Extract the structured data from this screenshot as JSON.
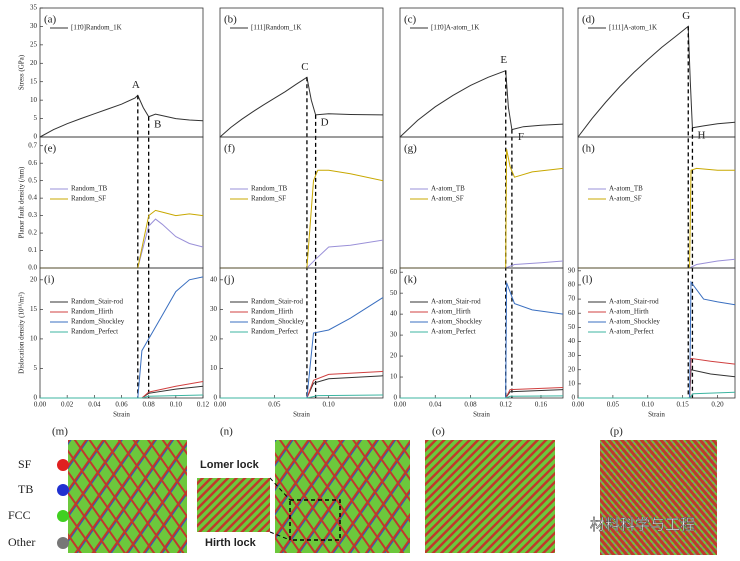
{
  "chart_data": [
    {
      "type": "line",
      "panel": "(a)",
      "ylabel": "Stress (GPa)",
      "xlim": [
        0,
        0.12
      ],
      "ylim": [
        0,
        35
      ],
      "yticks": [
        0,
        5,
        10,
        15,
        20,
        25,
        30,
        35
      ],
      "legend": "upper left",
      "markers": [
        0.072,
        0.08
      ],
      "marker_labels": [
        "A",
        "B"
      ],
      "series": [
        {
          "name": "[11̄0]Random_1K",
          "color": "#333333",
          "x": [
            0,
            0.01,
            0.02,
            0.03,
            0.04,
            0.05,
            0.06,
            0.07,
            0.072,
            0.076,
            0.08,
            0.085,
            0.09,
            0.1,
            0.11,
            0.12
          ],
          "values": [
            0,
            2,
            3.6,
            5,
            6.3,
            7.6,
            8.9,
            10.6,
            11.3,
            8,
            5.5,
            6.2,
            5.8,
            5,
            4.6,
            4.4
          ]
        }
      ]
    },
    {
      "type": "line",
      "panel": "(b)",
      "xlim": [
        0,
        0.15
      ],
      "ylim": [
        0,
        35
      ],
      "legend": "upper left",
      "markers": [
        0.08,
        0.088
      ],
      "marker_labels": [
        "C",
        "D"
      ],
      "series": [
        {
          "name": "[111]Random_1K",
          "color": "#333333",
          "x": [
            0,
            0.01,
            0.02,
            0.03,
            0.04,
            0.05,
            0.06,
            0.07,
            0.08,
            0.084,
            0.088,
            0.1,
            0.12,
            0.15
          ],
          "values": [
            0,
            2.6,
            4.8,
            6.8,
            8.7,
            10.5,
            12.3,
            14.3,
            16.2,
            10,
            6,
            6.3,
            6.1,
            6
          ]
        }
      ]
    },
    {
      "type": "line",
      "panel": "(c)",
      "xlim": [
        0,
        0.185
      ],
      "ylim": [
        0,
        35
      ],
      "legend": "upper left",
      "markers": [
        0.12,
        0.127
      ],
      "marker_labels": [
        "E",
        "F"
      ],
      "series": [
        {
          "name": "[11̄0]A-atom_1K",
          "color": "#333333",
          "x": [
            0,
            0.02,
            0.04,
            0.06,
            0.08,
            0.1,
            0.12,
            0.123,
            0.127,
            0.14,
            0.16,
            0.185
          ],
          "values": [
            0,
            4.5,
            8.2,
            11.3,
            14,
            16.2,
            18,
            8,
            2,
            2.8,
            3.2,
            3.5
          ]
        }
      ]
    },
    {
      "type": "line",
      "panel": "(d)",
      "xlim": [
        0,
        0.225
      ],
      "ylim": [
        0,
        35
      ],
      "legend": "upper left",
      "markers": [
        0.158,
        0.164
      ],
      "marker_labels": [
        "G",
        "H"
      ],
      "series": [
        {
          "name": "[111]A-atom_1K",
          "color": "#333333",
          "x": [
            0,
            0.02,
            0.04,
            0.06,
            0.08,
            0.1,
            0.12,
            0.14,
            0.158,
            0.161,
            0.164,
            0.18,
            0.2,
            0.225
          ],
          "values": [
            0,
            5,
            9.5,
            13.7,
            17.5,
            21,
            24.3,
            27.3,
            30,
            15,
            2.5,
            3,
            3.6,
            4
          ]
        }
      ]
    },
    {
      "type": "line",
      "panel": "(e)",
      "ylabel": "Planar fault density (/nm)",
      "xlim": [
        0,
        0.12
      ],
      "ylim": [
        0,
        0.75
      ],
      "yticks": [
        {
          "value": 0,
          "label": "0.0"
        },
        0.1,
        0.2,
        0.3,
        0.4,
        0.5,
        0.6,
        0.7
      ],
      "legend": "upper left",
      "series": [
        {
          "name": "Random_TB",
          "color": "#9a90d8",
          "x": [
            0,
            0.072,
            0.076,
            0.08,
            0.085,
            0.09,
            0.1,
            0.11,
            0.12
          ],
          "values": [
            0,
            0,
            0.12,
            0.24,
            0.28,
            0.25,
            0.18,
            0.14,
            0.12
          ]
        },
        {
          "name": "Random_SF",
          "color": "#c8a800",
          "x": [
            0,
            0.072,
            0.076,
            0.08,
            0.085,
            0.09,
            0.1,
            0.11,
            0.12
          ],
          "values": [
            0,
            0,
            0.15,
            0.3,
            0.33,
            0.32,
            0.3,
            0.31,
            0.3
          ]
        }
      ]
    },
    {
      "type": "line",
      "panel": "(f)",
      "xlim": [
        0,
        0.15
      ],
      "ylim": [
        0,
        0.75
      ],
      "legend": "upper left",
      "series": [
        {
          "name": "Random_TB",
          "color": "#9a90d8",
          "x": [
            0,
            0.08,
            0.088,
            0.1,
            0.12,
            0.15
          ],
          "values": [
            0,
            0,
            0.05,
            0.12,
            0.13,
            0.16
          ]
        },
        {
          "name": "Random_SF",
          "color": "#c8a800",
          "x": [
            0,
            0.08,
            0.086,
            0.09,
            0.1,
            0.12,
            0.15
          ],
          "values": [
            0,
            0,
            0.5,
            0.56,
            0.56,
            0.54,
            0.5
          ]
        }
      ]
    },
    {
      "type": "line",
      "panel": "(g)",
      "xlim": [
        0,
        0.185
      ],
      "ylim": [
        0,
        0.75
      ],
      "legend": "upper left",
      "series": [
        {
          "name": "A-atom_TB",
          "color": "#9a90d8",
          "x": [
            0,
            0.12,
            0.13,
            0.16,
            0.185
          ],
          "values": [
            0,
            0,
            0.02,
            0.03,
            0.04
          ]
        },
        {
          "name": "A-atom_SF",
          "color": "#c8a800",
          "x": [
            0,
            0.12,
            0.121,
            0.125,
            0.13,
            0.15,
            0.185
          ],
          "values": [
            0,
            0,
            0.68,
            0.58,
            0.52,
            0.55,
            0.57
          ]
        }
      ]
    },
    {
      "type": "line",
      "panel": "(h)",
      "xlim": [
        0,
        0.225
      ],
      "ylim": [
        0,
        0.75
      ],
      "legend": "upper left",
      "series": [
        {
          "name": "A-atom_TB",
          "color": "#9a90d8",
          "x": [
            0,
            0.16,
            0.17,
            0.2,
            0.225
          ],
          "values": [
            0,
            0,
            0.02,
            0.04,
            0.05
          ]
        },
        {
          "name": "A-atom_SF",
          "color": "#c8a800",
          "x": [
            0,
            0.16,
            0.162,
            0.17,
            0.2,
            0.225
          ],
          "values": [
            0,
            0,
            0.56,
            0.57,
            0.56,
            0.56
          ]
        }
      ]
    },
    {
      "type": "line",
      "panel": "(i)",
      "ylabel": "Dislocation density (10¹⁶/m²)",
      "xlabel": "Strain",
      "xlim": [
        0,
        0.12
      ],
      "ylim": [
        0,
        22
      ],
      "yticks": [
        0,
        5,
        10,
        15,
        20
      ],
      "xticks": [
        {
          "value": 0,
          "label": "0.00"
        },
        {
          "value": 0.02,
          "label": "0.02"
        },
        {
          "value": 0.04,
          "label": "0.04"
        },
        {
          "value": 0.06,
          "label": "0.06"
        },
        {
          "value": 0.08,
          "label": "0.08"
        },
        {
          "value": 0.1,
          "label": "0.10"
        },
        {
          "value": 0.12,
          "label": "0.12"
        }
      ],
      "legend": "upper left",
      "series": [
        {
          "name": "Random_Stair-rod",
          "color": "#333333",
          "x": [
            0,
            0.075,
            0.08,
            0.1,
            0.12
          ],
          "values": [
            0,
            0,
            0.8,
            1.5,
            2
          ]
        },
        {
          "name": "Random_Hirth",
          "color": "#d04040",
          "x": [
            0,
            0.075,
            0.08,
            0.1,
            0.12
          ],
          "values": [
            0,
            0,
            1,
            2,
            2.8
          ]
        },
        {
          "name": "Random_Shockley",
          "color": "#3a6fc0",
          "x": [
            0,
            0.072,
            0.075,
            0.08,
            0.09,
            0.1,
            0.11,
            0.12
          ],
          "values": [
            0,
            0,
            8,
            10,
            14,
            18,
            20,
            20.5
          ]
        },
        {
          "name": "Random_Perfect",
          "color": "#3cb4a0",
          "x": [
            0,
            0.075,
            0.08,
            0.12
          ],
          "values": [
            0,
            0,
            0.3,
            0.5
          ]
        }
      ]
    },
    {
      "type": "line",
      "panel": "(j)",
      "xlabel": "Strain",
      "xlim": [
        0,
        0.15
      ],
      "ylim": [
        0,
        44
      ],
      "yticks": [
        0,
        10,
        20,
        30,
        40
      ],
      "xticks": [
        {
          "value": 0,
          "label": "0.00"
        },
        {
          "value": 0.05,
          "label": "0.05"
        },
        {
          "value": 0.1,
          "label": "0.10"
        }
      ],
      "legend": "upper left",
      "series": [
        {
          "name": "Random_Stair-rod",
          "color": "#333333",
          "x": [
            0,
            0.08,
            0.086,
            0.1,
            0.15
          ],
          "values": [
            0,
            0,
            5,
            6.5,
            7.5
          ]
        },
        {
          "name": "Random_Hirth",
          "color": "#d04040",
          "x": [
            0,
            0.08,
            0.086,
            0.1,
            0.15
          ],
          "values": [
            0,
            0,
            6,
            8,
            9
          ]
        },
        {
          "name": "Random_Shockley",
          "color": "#3a6fc0",
          "x": [
            0,
            0.08,
            0.086,
            0.1,
            0.12,
            0.15
          ],
          "values": [
            0,
            0,
            22,
            23,
            27,
            34
          ]
        },
        {
          "name": "Random_Perfect",
          "color": "#3cb4a0",
          "x": [
            0,
            0.08,
            0.09,
            0.15
          ],
          "values": [
            0,
            0,
            0.8,
            1
          ]
        }
      ]
    },
    {
      "type": "line",
      "panel": "(k)",
      "xlabel": "Strain",
      "xlim": [
        0,
        0.185
      ],
      "ylim": [
        0,
        62
      ],
      "yticks": [
        0,
        10,
        20,
        30,
        40,
        50,
        60
      ],
      "xticks": [
        {
          "value": 0,
          "label": "0.00"
        },
        {
          "value": 0.04,
          "label": "0.04"
        },
        {
          "value": 0.08,
          "label": "0.08"
        },
        {
          "value": 0.12,
          "label": "0.12"
        },
        {
          "value": 0.16,
          "label": "0.16"
        }
      ],
      "legend": "upper left",
      "series": [
        {
          "name": "A-atom_Stair-rod",
          "color": "#333333",
          "x": [
            0,
            0.12,
            0.125,
            0.185
          ],
          "values": [
            0,
            0,
            3,
            4
          ]
        },
        {
          "name": "A-atom_Hirth",
          "color": "#d04040",
          "x": [
            0,
            0.12,
            0.125,
            0.185
          ],
          "values": [
            0,
            0,
            4,
            5
          ]
        },
        {
          "name": "A-atom_Shockley",
          "color": "#3a6fc0",
          "x": [
            0,
            0.12,
            0.121,
            0.13,
            0.15,
            0.185
          ],
          "values": [
            0,
            0,
            55,
            45,
            42,
            40
          ]
        },
        {
          "name": "A-atom_Perfect",
          "color": "#3cb4a0",
          "x": [
            0,
            0.12,
            0.125,
            0.185
          ],
          "values": [
            0,
            0,
            0.8,
            1
          ]
        }
      ]
    },
    {
      "type": "line",
      "panel": "(l)",
      "xlabel": "Strain",
      "xlim": [
        0,
        0.225
      ],
      "ylim": [
        0,
        92
      ],
      "yticks": [
        0,
        10,
        20,
        30,
        40,
        50,
        60,
        70,
        80,
        90
      ],
      "xticks": [
        {
          "value": 0,
          "label": "0.00"
        },
        {
          "value": 0.05,
          "label": "0.05"
        },
        {
          "value": 0.1,
          "label": "0.10"
        },
        {
          "value": 0.15,
          "label": "0.15"
        },
        {
          "value": 0.2,
          "label": "0.20"
        }
      ],
      "legend": "upper left",
      "series": [
        {
          "name": "A-atom_Stair-rod",
          "color": "#333333",
          "x": [
            0,
            0.16,
            0.162,
            0.19,
            0.225
          ],
          "values": [
            0,
            0,
            20,
            17,
            15
          ]
        },
        {
          "name": "A-atom_Hirth",
          "color": "#d04040",
          "x": [
            0,
            0.16,
            0.162,
            0.19,
            0.225
          ],
          "values": [
            0,
            0,
            28,
            26,
            24
          ]
        },
        {
          "name": "A-atom_Shockley",
          "color": "#3a6fc0",
          "x": [
            0,
            0.16,
            0.162,
            0.18,
            0.2,
            0.225
          ],
          "values": [
            0,
            0,
            82,
            70,
            68,
            66
          ]
        },
        {
          "name": "A-atom_Perfect",
          "color": "#3cb4a0",
          "x": [
            0,
            0.16,
            0.165,
            0.225
          ],
          "values": [
            0,
            0,
            3,
            4
          ]
        }
      ]
    }
  ],
  "images": {
    "panels": [
      "(m)",
      "(n)",
      "(o)",
      "(p)"
    ],
    "legend": [
      "SF",
      "TB",
      "FCC",
      "Other"
    ],
    "annotations": [
      "Lomer lock",
      "Hirth lock"
    ],
    "watermark": "材料科学与工程"
  }
}
